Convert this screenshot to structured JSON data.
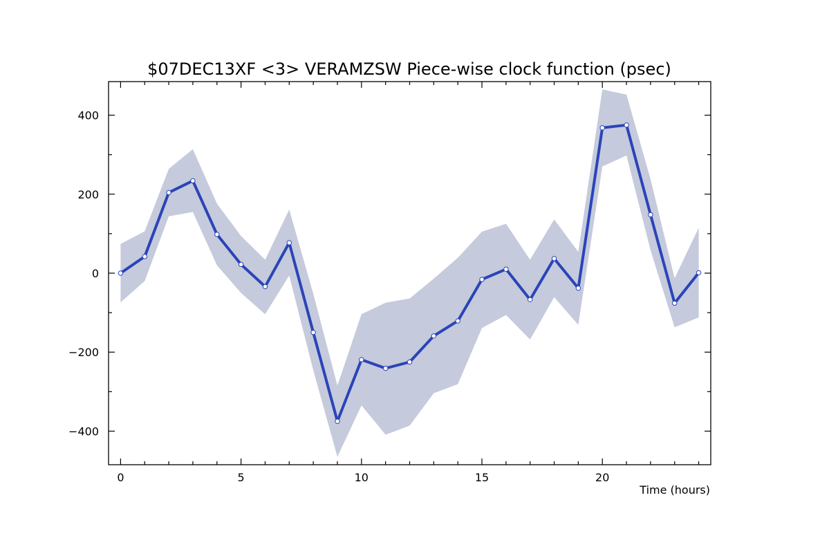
{
  "chart_data": {
    "type": "line",
    "title": "$07DEC13XF <3>  VERAMZSW  Piece-wise clock function (psec)",
    "xlabel": "Time (hours)",
    "ylabel": "",
    "xlim": [
      -0.5,
      24.5
    ],
    "ylim": [
      -485,
      485
    ],
    "x_ticks": [
      0,
      5,
      10,
      15,
      20
    ],
    "x_tick_labels": [
      "0",
      "5",
      "10",
      "15",
      "20"
    ],
    "y_ticks": [
      -400,
      -200,
      0,
      200,
      400
    ],
    "y_tick_labels": [
      "−400",
      "−200",
      "0",
      "200",
      "400"
    ],
    "grid": false,
    "legend": "none",
    "series": [
      {
        "x": [
          0,
          1,
          2,
          3,
          4,
          5,
          6,
          7,
          8,
          9,
          10,
          11,
          12,
          13,
          14,
          15,
          16,
          17,
          18,
          19,
          20,
          21,
          22,
          23,
          24
        ],
        "values": [
          0,
          42,
          204,
          234,
          98,
          22,
          -34,
          77,
          -150,
          -375,
          -219,
          -241,
          -225,
          -159,
          -121,
          -16,
          10,
          -67,
          37,
          -38,
          368,
          375,
          148,
          -76,
          1
        ],
        "upper": [
          74,
          106,
          264,
          314,
          176,
          94,
          34,
          161,
          -52,
          -285,
          -104,
          -75,
          -64,
          -14,
          39,
          105,
          125,
          34,
          136,
          54,
          465,
          452,
          238,
          -13,
          115
        ],
        "lower": [
          -74,
          -20,
          144,
          155,
          20,
          -50,
          -104,
          -6,
          -246,
          -465,
          -335,
          -409,
          -386,
          -304,
          -281,
          -139,
          -106,
          -168,
          -61,
          -131,
          270,
          298,
          58,
          -137,
          -112
        ]
      }
    ],
    "colors": {
      "line": "#2a44b8",
      "band": "#c5cadc",
      "marker_fill": "#ffffff",
      "axis": "#000000"
    }
  }
}
